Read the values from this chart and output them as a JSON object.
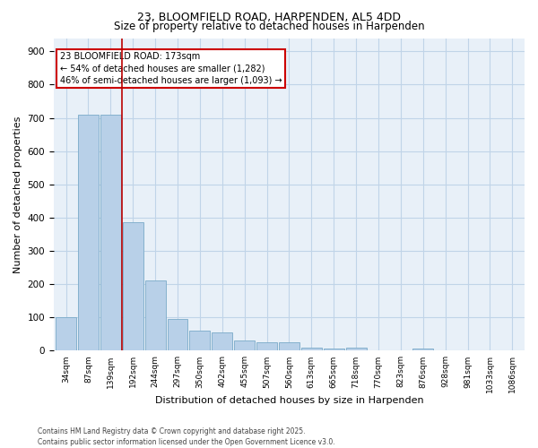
{
  "title": "23, BLOOMFIELD ROAD, HARPENDEN, AL5 4DD",
  "subtitle": "Size of property relative to detached houses in Harpenden",
  "xlabel": "Distribution of detached houses by size in Harpenden",
  "ylabel": "Number of detached properties",
  "categories": [
    "34sqm",
    "87sqm",
    "139sqm",
    "192sqm",
    "244sqm",
    "297sqm",
    "350sqm",
    "402sqm",
    "455sqm",
    "507sqm",
    "560sqm",
    "613sqm",
    "665sqm",
    "718sqm",
    "770sqm",
    "823sqm",
    "876sqm",
    "928sqm",
    "981sqm",
    "1033sqm",
    "1086sqm"
  ],
  "values": [
    100,
    710,
    710,
    385,
    210,
    95,
    60,
    55,
    30,
    25,
    25,
    10,
    5,
    10,
    0,
    0,
    5,
    0,
    0,
    0,
    0
  ],
  "bar_color": "#b8d0e8",
  "bar_edge_color": "#7aaac8",
  "grid_color": "#c0d4e8",
  "bg_color": "#e8f0f8",
  "vline_x_index": 3,
  "vline_color": "#bb0000",
  "annotation_text_line1": "23 BLOOMFIELD ROAD: 173sqm",
  "annotation_text_line2": "← 54% of detached houses are smaller (1,282)",
  "annotation_text_line3": "46% of semi-detached houses are larger (1,093) →",
  "annotation_box_facecolor": "#ffffff",
  "annotation_box_edgecolor": "#cc0000",
  "ylim": [
    0,
    940
  ],
  "yticks": [
    0,
    100,
    200,
    300,
    400,
    500,
    600,
    700,
    800,
    900
  ],
  "title_fontsize": 9,
  "subtitle_fontsize": 8.5,
  "ylabel_fontsize": 8,
  "xlabel_fontsize": 8,
  "tick_fontsize": 7.5,
  "xtick_fontsize": 6.5,
  "footer_line1": "Contains HM Land Registry data © Crown copyright and database right 2025.",
  "footer_line2": "Contains public sector information licensed under the Open Government Licence v3.0.",
  "footer_fontsize": 5.5
}
